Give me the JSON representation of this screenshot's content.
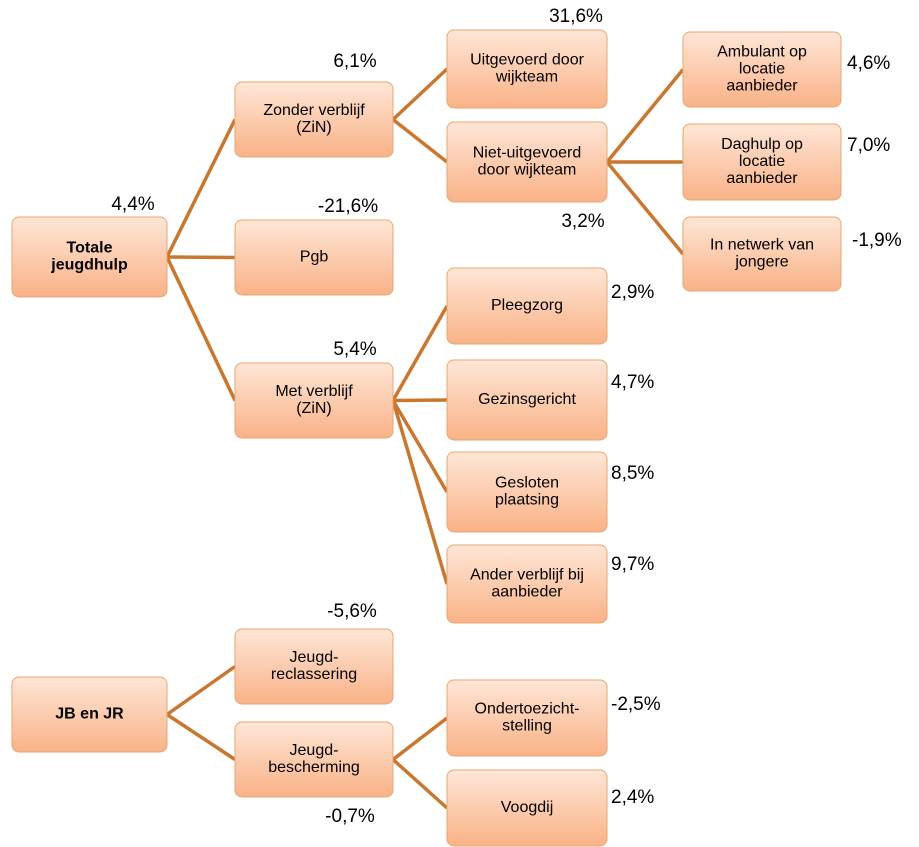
{
  "nodes": [
    {
      "label": [
        "Totale",
        "jeugdhulp"
      ],
      "value": "4,4%"
    },
    {
      "label": [
        "Zonder verblijf",
        "(ZiN)"
      ],
      "value": "6,1%"
    },
    {
      "label": [
        "Pgb"
      ],
      "value": "-21,6%"
    },
    {
      "label": [
        "Met verblijf",
        "(ZiN)"
      ],
      "value": "5,4%"
    },
    {
      "label": [
        "Uitgevoerd door",
        "wijkteam"
      ],
      "value": "31,6%"
    },
    {
      "label": [
        "Niet-uitgevoerd",
        "door wijkteam"
      ],
      "value": "3,2%"
    },
    {
      "label": [
        "Ambulant op",
        "locatie",
        "aanbieder"
      ],
      "value": "4,6%"
    },
    {
      "label": [
        "Daghulp op",
        "locatie",
        "aanbieder"
      ],
      "value": "7,0%"
    },
    {
      "label": [
        "In netwerk van",
        "jongere"
      ],
      "value": "-1,9%"
    },
    {
      "label": [
        "Pleegzorg"
      ],
      "value": "2,9%"
    },
    {
      "label": [
        "Gezinsgericht"
      ],
      "value": "4,7%"
    },
    {
      "label": [
        "Gesloten",
        "plaatsing"
      ],
      "value": "8,5%"
    },
    {
      "label": [
        "Ander verblijf bij",
        "aanbieder"
      ],
      "value": "9,7%"
    },
    {
      "label": [
        "JB en JR"
      ]
    },
    {
      "label": [
        "Jeugd-",
        "reclassering"
      ],
      "value": "-5,6%"
    },
    {
      "label": [
        "Jeugd-",
        "bescherming"
      ],
      "value": "-0,7%"
    },
    {
      "label": [
        "Ondertoezicht-",
        "stelling"
      ],
      "value": "-2,5%"
    },
    {
      "label": [
        "Voogdij"
      ],
      "value": "2,4%"
    }
  ]
}
